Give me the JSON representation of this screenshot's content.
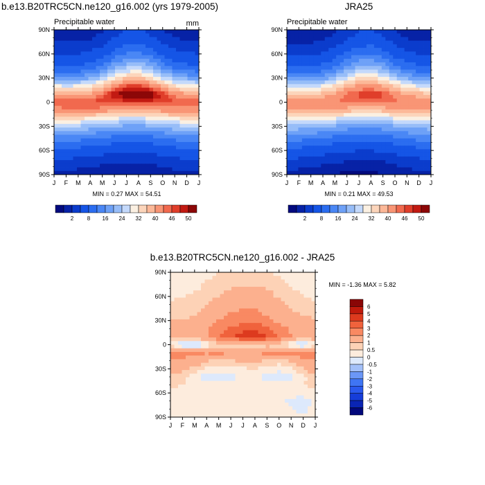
{
  "chart_data": [
    {
      "type": "heatmap",
      "title": "b.e13.B20TRC5CN.ne120_g16.002 (yrs 1979-2005)",
      "subtitle_left": "Precipitable water",
      "subtitle_right": "mm",
      "x_ticks": [
        "J",
        "F",
        "M",
        "A",
        "M",
        "J",
        "J",
        "A",
        "S",
        "O",
        "N",
        "D",
        "J"
      ],
      "y_ticks": [
        "90N",
        "60N",
        "30N",
        "0",
        "30S",
        "60S",
        "90S"
      ],
      "min_max_text": "MIN =   0.27 MAX =  54.51",
      "colorbar_labels": [
        "2",
        "8",
        "16",
        "24",
        "32",
        "40",
        "46",
        "50"
      ],
      "colorbar_levels": [
        1,
        2,
        4,
        8,
        12,
        16,
        20,
        24,
        28,
        32,
        36,
        40,
        44,
        46,
        48,
        50
      ],
      "colorbar_colors": [
        "#030a7e",
        "#0722a6",
        "#0b3ccc",
        "#1555e6",
        "#2b6df0",
        "#4a87f5",
        "#6ea1f7",
        "#97bdf8",
        "#c4d9fb",
        "#fbf0e2",
        "#fcd5bb",
        "#fcb898",
        "#f99575",
        "#f1694e",
        "#e03e2a",
        "#c21a12",
        "#8c0707"
      ],
      "x_labels": [],
      "lat": [
        -90,
        -80,
        -70,
        -60,
        -50,
        -40,
        -30,
        -20,
        -10,
        0,
        10,
        20,
        30,
        40,
        50,
        60,
        70,
        80,
        90
      ],
      "values": [
        [
          1.5,
          1.4,
          1.3,
          1.2,
          1.1,
          1.0,
          1.0,
          1.0,
          1.1,
          1.2,
          1.4,
          1.5,
          1.5
        ],
        [
          2.8,
          2.6,
          2.3,
          2.0,
          1.8,
          1.6,
          1.5,
          1.5,
          1.7,
          2.0,
          2.4,
          2.7,
          2.8
        ],
        [
          4.5,
          4.2,
          3.8,
          3.3,
          2.9,
          2.6,
          2.4,
          2.4,
          2.6,
          3.0,
          3.6,
          4.2,
          4.5
        ],
        [
          7.5,
          7.2,
          6.6,
          5.9,
          5.3,
          4.9,
          4.6,
          4.6,
          4.9,
          5.6,
          6.4,
          7.1,
          7.5
        ],
        [
          11.5,
          11.2,
          10.6,
          9.8,
          9.0,
          8.4,
          8.0,
          8.0,
          8.4,
          9.3,
          10.4,
          11.2,
          11.5
        ],
        [
          17,
          16.8,
          16.2,
          15.2,
          14.2,
          13.2,
          12.6,
          12.6,
          13.2,
          14.4,
          15.8,
          16.8,
          17
        ],
        [
          24,
          24,
          23.4,
          22.4,
          21,
          19.8,
          19,
          19,
          19.8,
          21.2,
          22.8,
          23.8,
          24
        ],
        [
          33,
          33,
          32.6,
          31.8,
          30.2,
          28.6,
          27.4,
          27.4,
          28.6,
          30.4,
          32,
          32.8,
          33
        ],
        [
          43,
          43.4,
          43.8,
          43.6,
          42.4,
          40.6,
          39.2,
          39.2,
          40.4,
          41.8,
          42.6,
          42.8,
          43
        ],
        [
          45.5,
          45.8,
          46,
          46.5,
          47,
          47.2,
          47,
          47,
          47.2,
          47,
          46.5,
          46,
          45.5
        ],
        [
          39,
          38.5,
          38.8,
          41,
          45,
          49.5,
          52.5,
          53.5,
          52,
          47.5,
          43,
          40.5,
          39
        ],
        [
          29,
          28,
          28.4,
          31,
          36,
          42,
          46.5,
          47.5,
          44.5,
          38.5,
          33,
          30,
          29
        ],
        [
          18,
          17,
          17.2,
          19.6,
          24.5,
          31,
          36,
          37,
          33.5,
          27,
          21.5,
          19,
          18
        ],
        [
          10.5,
          10,
          10.2,
          12,
          16,
          21.5,
          26,
          27,
          23.5,
          17.5,
          12.8,
          11,
          10.5
        ],
        [
          6.5,
          6.2,
          6.4,
          7.6,
          10.2,
          14.6,
          18.6,
          19.4,
          16.2,
          11.4,
          8.2,
          7,
          6.5
        ],
        [
          4,
          3.8,
          3.9,
          4.6,
          6.3,
          9.4,
          12.6,
          13.2,
          10.6,
          7,
          5,
          4.3,
          4
        ],
        [
          2.5,
          2.4,
          2.4,
          2.8,
          3.9,
          6,
          8.4,
          8.8,
          6.8,
          4.4,
          3,
          2.6,
          2.5
        ],
        [
          1.7,
          1.6,
          1.6,
          1.8,
          2.5,
          3.9,
          5.6,
          5.9,
          4.5,
          2.8,
          2,
          1.8,
          1.7
        ],
        [
          1.2,
          1.1,
          1.1,
          1.3,
          1.8,
          2.8,
          4.0,
          4.2,
          3.2,
          2.0,
          1.4,
          1.2,
          1.2
        ]
      ]
    },
    {
      "type": "heatmap",
      "title": "JRA25",
      "subtitle_left": "Precipitable water",
      "subtitle_right": "",
      "x_ticks": [
        "J",
        "F",
        "M",
        "A",
        "M",
        "J",
        "J",
        "A",
        "S",
        "O",
        "N",
        "D",
        "J"
      ],
      "y_ticks": [
        "90N",
        "60N",
        "30N",
        "0",
        "30S",
        "60S",
        "90S"
      ],
      "min_max_text": "MIN =   0.21 MAX =  49.53",
      "colorbar_labels": [
        "2",
        "8",
        "16",
        "24",
        "32",
        "40",
        "46",
        "50"
      ],
      "colorbar_levels": [
        1,
        2,
        4,
        8,
        12,
        16,
        20,
        24,
        28,
        32,
        36,
        40,
        44,
        46,
        48,
        50
      ],
      "colorbar_colors": [
        "#030a7e",
        "#0722a6",
        "#0b3ccc",
        "#1555e6",
        "#2b6df0",
        "#4a87f5",
        "#6ea1f7",
        "#97bdf8",
        "#c4d9fb",
        "#fbf0e2",
        "#fcd5bb",
        "#fcb898",
        "#f99575",
        "#f1694e",
        "#e03e2a",
        "#c21a12",
        "#8c0707"
      ],
      "lat": [
        -90,
        -80,
        -70,
        -60,
        -50,
        -40,
        -30,
        -20,
        -10,
        0,
        10,
        20,
        30,
        40,
        50,
        60,
        70,
        80,
        90
      ],
      "values": [
        [
          1.3,
          1.2,
          1.1,
          1.0,
          0.9,
          0.8,
          0.8,
          0.8,
          0.9,
          1.0,
          1.2,
          1.3,
          1.3
        ],
        [
          2.6,
          2.4,
          2.1,
          1.8,
          1.6,
          1.4,
          1.3,
          1.3,
          1.5,
          1.8,
          2.2,
          2.5,
          2.6
        ],
        [
          4.2,
          3.9,
          3.5,
          3.0,
          2.6,
          2.3,
          2.1,
          2.1,
          2.3,
          2.7,
          3.3,
          3.9,
          4.2
        ],
        [
          7,
          6.7,
          6.1,
          5.4,
          4.8,
          4.4,
          4.1,
          4.1,
          4.4,
          5.1,
          5.9,
          6.6,
          7
        ],
        [
          11,
          10.7,
          10.1,
          9.3,
          8.5,
          7.9,
          7.5,
          7.5,
          7.9,
          8.8,
          9.9,
          10.7,
          11
        ],
        [
          16,
          15.8,
          15.2,
          14.2,
          13.2,
          12.2,
          11.6,
          11.6,
          12.2,
          13.4,
          14.8,
          15.8,
          16
        ],
        [
          22.5,
          22.5,
          22,
          21,
          19.6,
          18.4,
          17.6,
          17.6,
          18.4,
          19.8,
          21.4,
          22.4,
          22.5
        ],
        [
          31,
          31,
          30.6,
          29.8,
          28.2,
          26.6,
          25.4,
          25.4,
          26.6,
          28.4,
          30,
          30.8,
          31
        ],
        [
          40,
          40.4,
          40.8,
          40.6,
          39.4,
          37.8,
          36.4,
          36.4,
          37.6,
          39,
          39.8,
          40,
          40
        ],
        [
          43,
          43.4,
          43.8,
          44.2,
          44.6,
          44.6,
          44.2,
          44.2,
          44.6,
          44.6,
          44.2,
          43.6,
          43
        ],
        [
          36,
          35.5,
          35.8,
          37.8,
          41,
          44.5,
          47,
          47.8,
          46.5,
          43,
          39.5,
          37.5,
          36
        ],
        [
          27,
          26,
          26.2,
          28.4,
          32.5,
          37.5,
          41.5,
          42.5,
          40,
          35,
          30.5,
          28,
          27
        ],
        [
          16.5,
          15.6,
          15.8,
          17.8,
          22,
          27.5,
          32,
          33,
          30,
          24.5,
          19.6,
          17.4,
          16.5
        ],
        [
          9.8,
          9.3,
          9.5,
          11,
          14.6,
          19.6,
          23.6,
          24.6,
          21.4,
          15.8,
          11.8,
          10.2,
          9.8
        ],
        [
          6,
          5.7,
          5.9,
          7,
          9.4,
          13.4,
          17,
          17.8,
          14.8,
          10.4,
          7.6,
          6.5,
          6
        ],
        [
          3.7,
          3.5,
          3.6,
          4.2,
          5.8,
          8.6,
          11.6,
          12.2,
          9.8,
          6.4,
          4.6,
          4,
          3.7
        ],
        [
          2.3,
          2.2,
          2.2,
          2.6,
          3.6,
          5.5,
          7.7,
          8.1,
          6.2,
          4,
          2.8,
          2.4,
          2.3
        ],
        [
          1.6,
          1.5,
          1.5,
          1.7,
          2.3,
          3.6,
          5.1,
          5.4,
          4.1,
          2.6,
          1.9,
          1.7,
          1.6
        ],
        [
          1.1,
          1.0,
          1.0,
          1.2,
          1.7,
          2.6,
          3.7,
          3.9,
          3.0,
          1.9,
          1.3,
          1.1,
          1.1
        ]
      ]
    },
    {
      "type": "heatmap",
      "title": "b.e13.B20TRC5CN.ne120_g16.002 - JRA25",
      "subtitle_left": "",
      "subtitle_right": "",
      "x_ticks": [
        "J",
        "F",
        "M",
        "A",
        "M",
        "J",
        "J",
        "A",
        "S",
        "O",
        "N",
        "D",
        "J"
      ],
      "y_ticks": [
        "90N",
        "60N",
        "30N",
        "0",
        "30S",
        "60S",
        "90S"
      ],
      "min_max_text": "MIN =  -1.36 MAX =   5.82",
      "colorbar_labels": [
        "6",
        "5",
        "4",
        "3",
        "2",
        "1",
        "0.5",
        "0",
        "-0.5",
        "-1",
        "-2",
        "-3",
        "-4",
        "-5",
        "-6"
      ],
      "colorbar_levels": [
        -6,
        -5,
        -4,
        -3,
        -2,
        -1,
        -0.5,
        0,
        0.5,
        1,
        2,
        3,
        4,
        5,
        6
      ],
      "colorbar_colors": [
        "#02087b",
        "#0a25b4",
        "#163dd9",
        "#2a59ee",
        "#3f75f4",
        "#6b97f7",
        "#a3c0f9",
        "#dde9fc",
        "#fdecdd",
        "#fdd2b6",
        "#fcb08e",
        "#f98962",
        "#f0623c",
        "#dd3a1e",
        "#c01a0c",
        "#8a0606"
      ],
      "lat": [
        -90,
        -80,
        -70,
        -60,
        -50,
        -40,
        -30,
        -20,
        -10,
        0,
        10,
        20,
        30,
        40,
        50,
        60,
        70,
        80,
        90
      ],
      "values": [
        [
          0.2,
          0.2,
          0.2,
          0.2,
          0.2,
          0.2,
          0.2,
          0.2,
          0.2,
          0.2,
          0.2,
          0.2,
          0.2
        ],
        [
          0.3,
          0.3,
          0.3,
          0.3,
          0.3,
          0.2,
          0.3,
          0.3,
          0.3,
          0.3,
          0.1,
          -0.3,
          0.3
        ],
        [
          0.3,
          0.3,
          0.3,
          0.3,
          0.3,
          0.3,
          0.3,
          0.3,
          0.3,
          0.3,
          -0.2,
          -0.4,
          0.3
        ],
        [
          0.4,
          0.4,
          0.4,
          0.4,
          0.4,
          0.4,
          0.4,
          0.4,
          0.4,
          0.4,
          0.3,
          0.3,
          0.4
        ],
        [
          0.6,
          0.5,
          0.4,
          0.2,
          0.2,
          0.3,
          0.4,
          0.4,
          0.3,
          0.2,
          0.3,
          0.5,
          0.6
        ],
        [
          0.8,
          0.6,
          0.2,
          -0.3,
          -0.3,
          -0.2,
          0.1,
          0.2,
          -0.3,
          -0.4,
          -0.2,
          0.4,
          0.8
        ],
        [
          1.5,
          1.2,
          0.8,
          0.4,
          0.3,
          0.3,
          0.4,
          0.5,
          0.3,
          0.2,
          0.4,
          1.0,
          1.5
        ],
        [
          2.0,
          1.8,
          1.5,
          1.1,
          0.8,
          0.9,
          1.2,
          1.3,
          0.9,
          0.7,
          1.1,
          1.7,
          2.0
        ],
        [
          3.0,
          2.6,
          2.2,
          2.1,
          2.3,
          2.0,
          1.8,
          1.9,
          2.4,
          2.6,
          2.3,
          2.6,
          3.0
        ],
        [
          0.2,
          -0.8,
          -1.0,
          -0.2,
          0.5,
          0.6,
          0.5,
          0.5,
          0.6,
          0.5,
          -0.3,
          -0.9,
          0.2
        ],
        [
          1.5,
          1.2,
          1.4,
          2.0,
          3.0,
          3.8,
          4.5,
          4.8,
          4.0,
          2.8,
          2.0,
          1.6,
          1.5
        ],
        [
          1.2,
          1.0,
          1.2,
          1.8,
          2.6,
          3.2,
          3.6,
          3.8,
          3.2,
          2.4,
          1.8,
          1.4,
          1.2
        ],
        [
          1.0,
          1.0,
          1.2,
          1.6,
          2.0,
          2.4,
          2.6,
          2.6,
          2.2,
          1.8,
          1.4,
          1.2,
          1.0
        ],
        [
          0.8,
          0.8,
          0.9,
          1.2,
          1.5,
          2.0,
          2.2,
          2.2,
          1.8,
          1.4,
          1.1,
          0.9,
          0.8
        ],
        [
          0.6,
          0.6,
          0.7,
          1.0,
          1.3,
          1.6,
          1.8,
          1.8,
          1.5,
          1.2,
          0.9,
          0.7,
          0.6
        ],
        [
          0.4,
          0.5,
          0.6,
          0.8,
          1.0,
          1.2,
          1.4,
          1.4,
          1.2,
          0.9,
          0.7,
          0.5,
          0.4
        ],
        [
          0.3,
          0.3,
          0.4,
          0.6,
          0.8,
          1.0,
          1.1,
          1.1,
          1.0,
          0.8,
          0.5,
          0.4,
          0.3
        ],
        [
          0.2,
          0.3,
          0.4,
          0.5,
          0.6,
          0.7,
          0.8,
          0.8,
          0.7,
          0.6,
          0.4,
          0.3,
          0.2
        ],
        [
          0.2,
          0.2,
          0.3,
          0.4,
          0.5,
          0.6,
          0.6,
          0.6,
          0.5,
          0.4,
          0.3,
          0.2,
          0.2
        ]
      ]
    }
  ]
}
